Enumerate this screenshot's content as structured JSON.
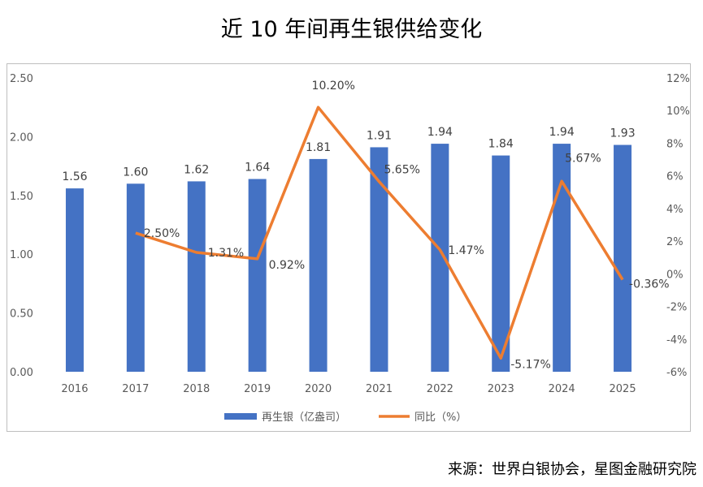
{
  "chart_data": {
    "type": "bar+line",
    "title": "近 10 年间再生银供给变化",
    "categories": [
      "2016",
      "2017",
      "2018",
      "2019",
      "2020",
      "2021",
      "2022",
      "2023",
      "2024",
      "2025"
    ],
    "series": [
      {
        "name": "再生银（亿盎司）",
        "type": "bar",
        "axis": "left",
        "color": "#4472C4",
        "values": [
          1.56,
          1.6,
          1.62,
          1.64,
          1.81,
          1.91,
          1.94,
          1.84,
          1.94,
          1.93
        ],
        "labels": [
          "1.56",
          "1.60",
          "1.62",
          "1.64",
          "1.81",
          "1.91",
          "1.94",
          "1.84",
          "1.94",
          "1.93"
        ]
      },
      {
        "name": "同比（%）",
        "type": "line",
        "axis": "right",
        "color": "#ED7D31",
        "values": [
          null,
          2.5,
          1.31,
          0.92,
          10.2,
          5.65,
          1.47,
          -5.17,
          5.67,
          -0.36
        ],
        "labels": [
          null,
          "2.50%",
          "1.31%",
          "0.92%",
          "10.20%",
          "5.65%",
          "1.47%",
          "-5.17%",
          "5.67%",
          "-0.36%"
        ]
      }
    ],
    "left_axis": {
      "ylim": [
        0,
        2.5
      ],
      "ticks": [
        "0.00",
        "0.50",
        "1.00",
        "1.50",
        "2.00",
        "2.50"
      ]
    },
    "right_axis": {
      "ylim": [
        -6,
        12
      ],
      "ticks": [
        "-6%",
        "-4%",
        "-2%",
        "0%",
        "2%",
        "4%",
        "6%",
        "8%",
        "10%",
        "12%"
      ]
    },
    "legend": "bottom",
    "grid": false
  },
  "source": "来源：世界白银协会，星图金融研究院"
}
